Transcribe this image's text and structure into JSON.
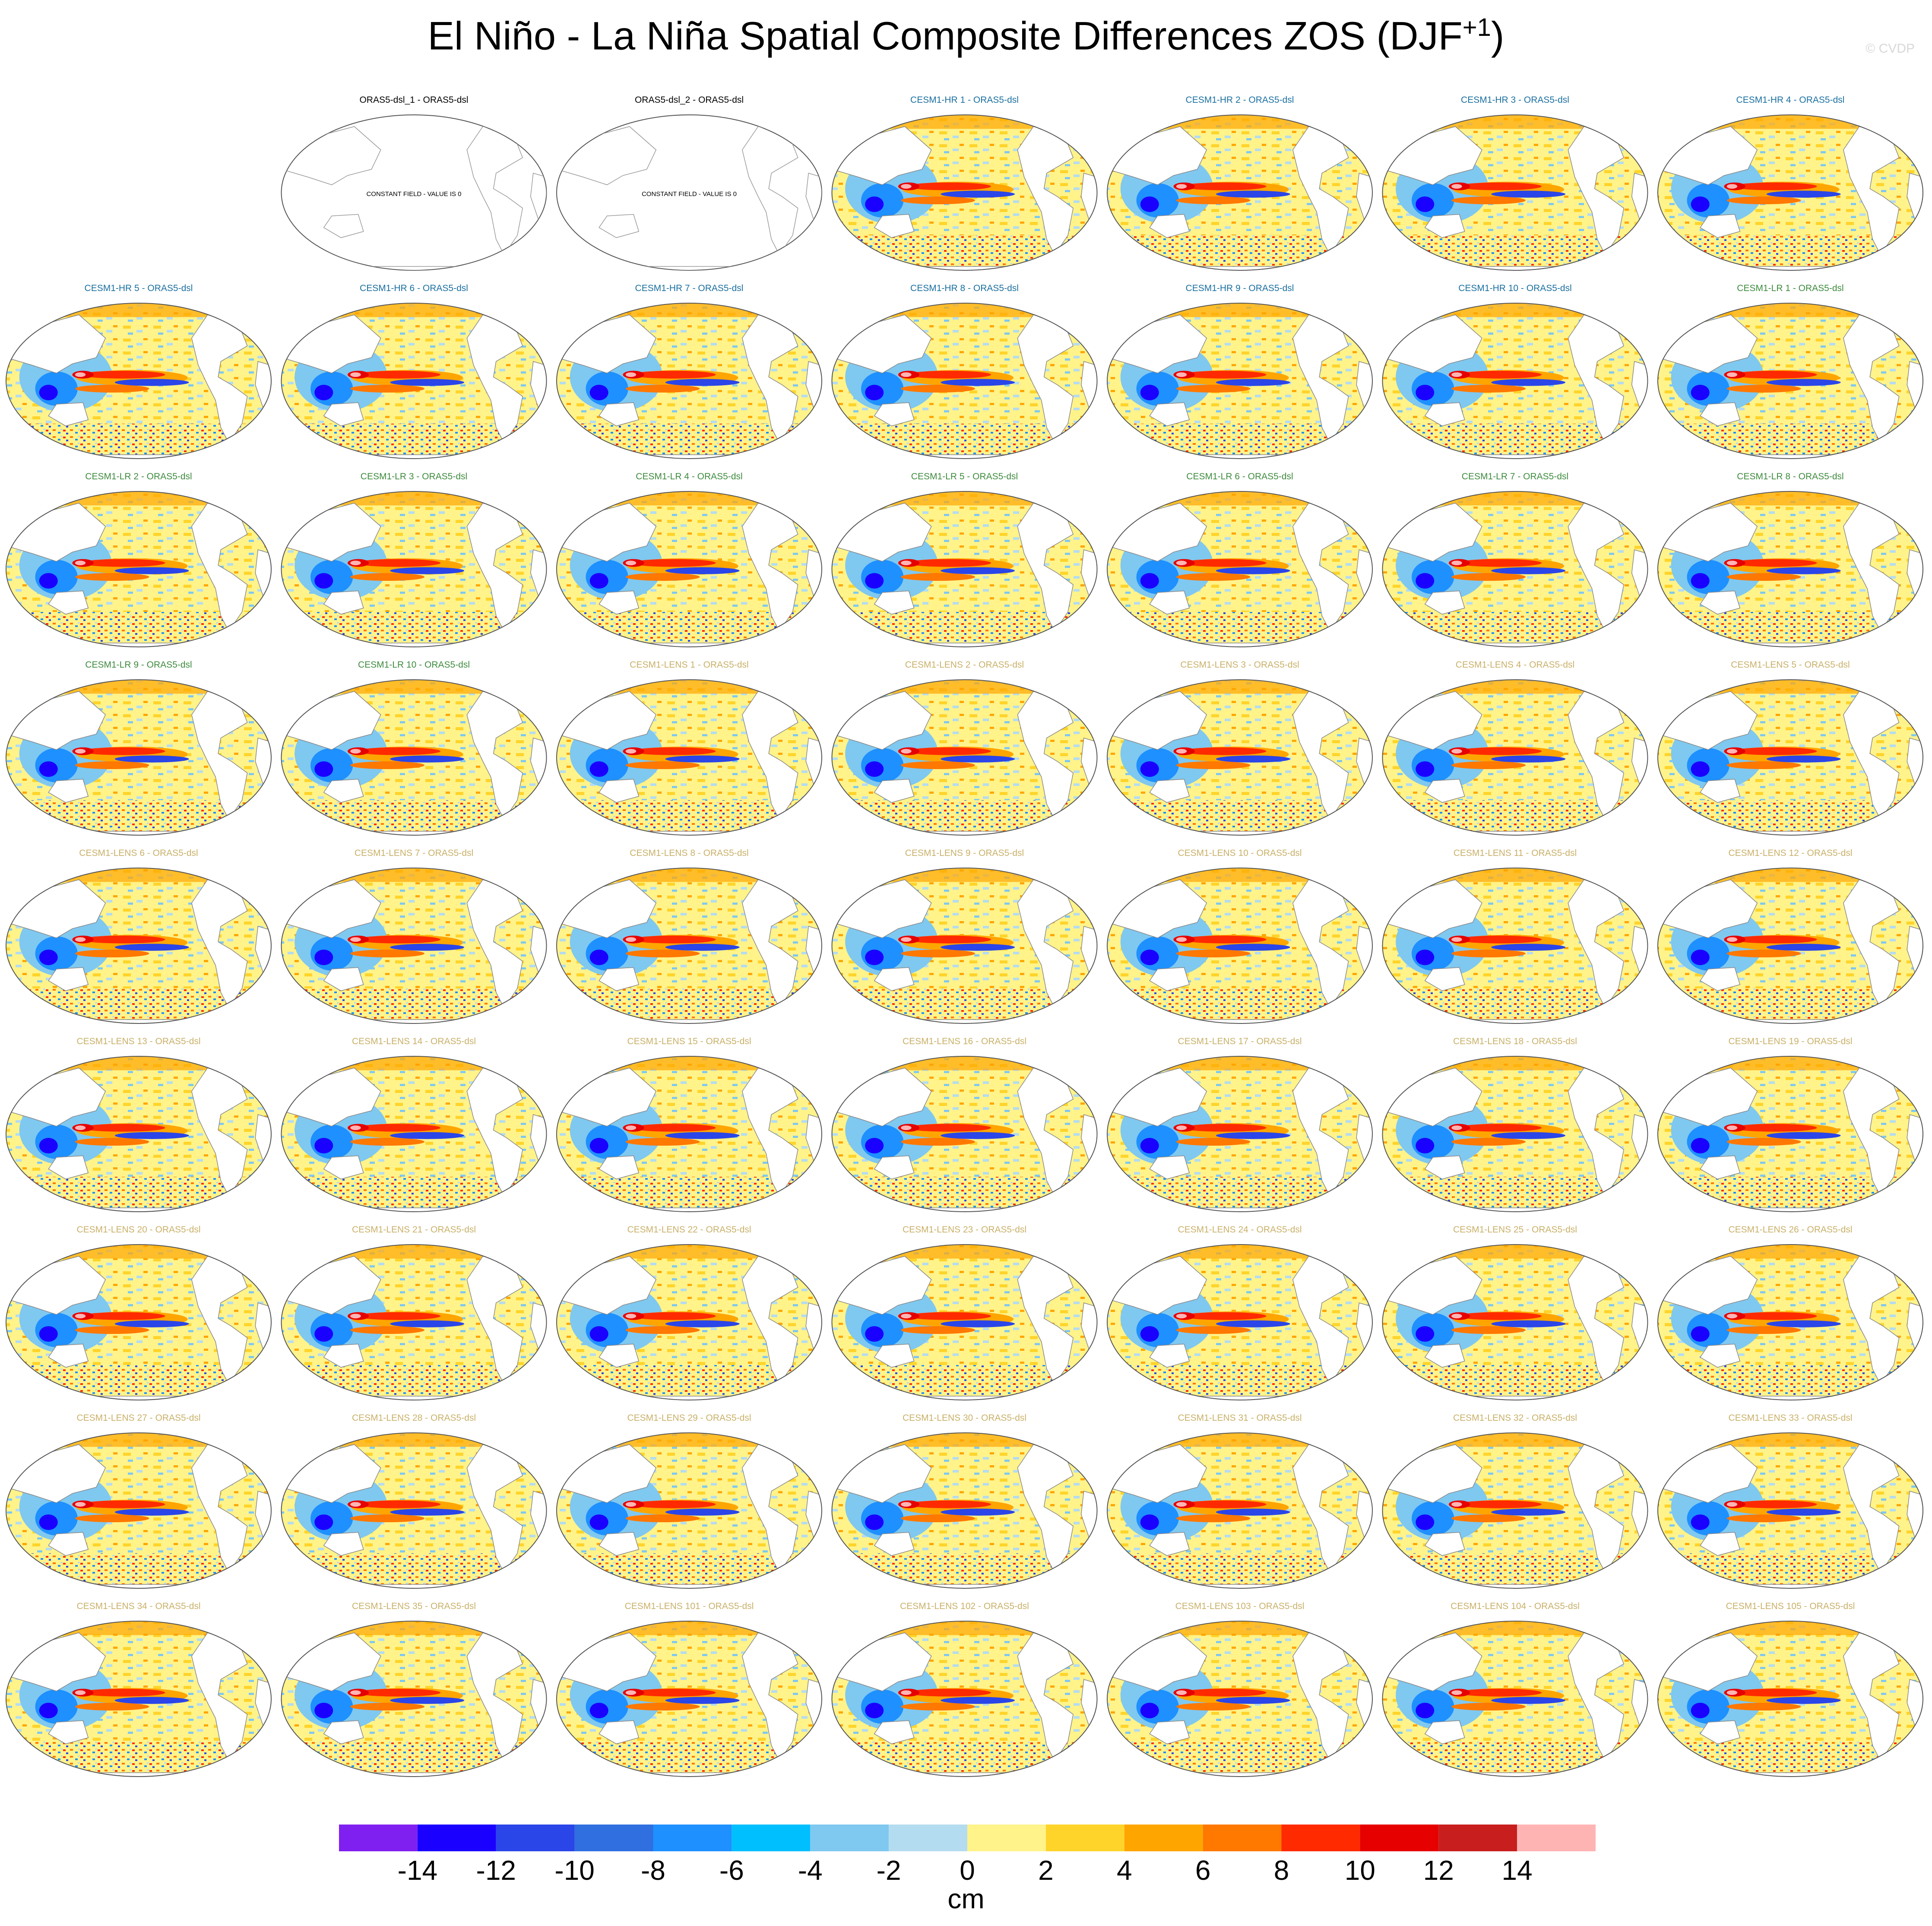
{
  "figure": {
    "title_main": "El Niño - La Niña Spatial Composite Differences ZOS (DJF",
    "title_sup": "+1",
    "title_close": ")",
    "credit": "© CVDP"
  },
  "panels": [
    {
      "label": "ORAS5-dsl_1 - ORAS5-dsl",
      "group": "obs",
      "constant": true
    },
    {
      "label": "ORAS5-dsl_2 - ORAS5-dsl",
      "group": "obs",
      "constant": true
    },
    {
      "label": "CESM1-HR 1 - ORAS5-dsl",
      "group": "hr"
    },
    {
      "label": "CESM1-HR 2 - ORAS5-dsl",
      "group": "hr"
    },
    {
      "label": "CESM1-HR 3 - ORAS5-dsl",
      "group": "hr"
    },
    {
      "label": "CESM1-HR 4 - ORAS5-dsl",
      "group": "hr"
    },
    {
      "label": "CESM1-HR 5 - ORAS5-dsl",
      "group": "hr"
    },
    {
      "label": "CESM1-HR 6 - ORAS5-dsl",
      "group": "hr"
    },
    {
      "label": "CESM1-HR 7 - ORAS5-dsl",
      "group": "hr"
    },
    {
      "label": "CESM1-HR 8 - ORAS5-dsl",
      "group": "hr"
    },
    {
      "label": "CESM1-HR 9 - ORAS5-dsl",
      "group": "hr"
    },
    {
      "label": "CESM1-HR 10 - ORAS5-dsl",
      "group": "hr"
    },
    {
      "label": "CESM1-LR 1 - ORAS5-dsl",
      "group": "lr"
    },
    {
      "label": "CESM1-LR 2 - ORAS5-dsl",
      "group": "lr"
    },
    {
      "label": "CESM1-LR 3 - ORAS5-dsl",
      "group": "lr"
    },
    {
      "label": "CESM1-LR 4 - ORAS5-dsl",
      "group": "lr"
    },
    {
      "label": "CESM1-LR 5 - ORAS5-dsl",
      "group": "lr"
    },
    {
      "label": "CESM1-LR 6 - ORAS5-dsl",
      "group": "lr"
    },
    {
      "label": "CESM1-LR 7 - ORAS5-dsl",
      "group": "lr"
    },
    {
      "label": "CESM1-LR 8 - ORAS5-dsl",
      "group": "lr"
    },
    {
      "label": "CESM1-LR 9 - ORAS5-dsl",
      "group": "lr"
    },
    {
      "label": "CESM1-LR 10 - ORAS5-dsl",
      "group": "lr"
    },
    {
      "label": "CESM1-LENS 1 - ORAS5-dsl",
      "group": "lens"
    },
    {
      "label": "CESM1-LENS 2 - ORAS5-dsl",
      "group": "lens"
    },
    {
      "label": "CESM1-LENS 3 - ORAS5-dsl",
      "group": "lens"
    },
    {
      "label": "CESM1-LENS 4 - ORAS5-dsl",
      "group": "lens"
    },
    {
      "label": "CESM1-LENS 5 - ORAS5-dsl",
      "group": "lens"
    },
    {
      "label": "CESM1-LENS 6 - ORAS5-dsl",
      "group": "lens"
    },
    {
      "label": "CESM1-LENS 7 - ORAS5-dsl",
      "group": "lens"
    },
    {
      "label": "CESM1-LENS 8 - ORAS5-dsl",
      "group": "lens"
    },
    {
      "label": "CESM1-LENS 9 - ORAS5-dsl",
      "group": "lens"
    },
    {
      "label": "CESM1-LENS 10 - ORAS5-dsl",
      "group": "lens"
    },
    {
      "label": "CESM1-LENS 11 - ORAS5-dsl",
      "group": "lens"
    },
    {
      "label": "CESM1-LENS 12 - ORAS5-dsl",
      "group": "lens"
    },
    {
      "label": "CESM1-LENS 13 - ORAS5-dsl",
      "group": "lens"
    },
    {
      "label": "CESM1-LENS 14 - ORAS5-dsl",
      "group": "lens"
    },
    {
      "label": "CESM1-LENS 15 - ORAS5-dsl",
      "group": "lens"
    },
    {
      "label": "CESM1-LENS 16 - ORAS5-dsl",
      "group": "lens"
    },
    {
      "label": "CESM1-LENS 17 - ORAS5-dsl",
      "group": "lens"
    },
    {
      "label": "CESM1-LENS 18 - ORAS5-dsl",
      "group": "lens"
    },
    {
      "label": "CESM1-LENS 19 - ORAS5-dsl",
      "group": "lens"
    },
    {
      "label": "CESM1-LENS 20 - ORAS5-dsl",
      "group": "lens"
    },
    {
      "label": "CESM1-LENS 21 - ORAS5-dsl",
      "group": "lens"
    },
    {
      "label": "CESM1-LENS 22 - ORAS5-dsl",
      "group": "lens"
    },
    {
      "label": "CESM1-LENS 23 - ORAS5-dsl",
      "group": "lens"
    },
    {
      "label": "CESM1-LENS 24 - ORAS5-dsl",
      "group": "lens"
    },
    {
      "label": "CESM1-LENS 25 - ORAS5-dsl",
      "group": "lens"
    },
    {
      "label": "CESM1-LENS 26 - ORAS5-dsl",
      "group": "lens"
    },
    {
      "label": "CESM1-LENS 27 - ORAS5-dsl",
      "group": "lens"
    },
    {
      "label": "CESM1-LENS 28 - ORAS5-dsl",
      "group": "lens"
    },
    {
      "label": "CESM1-LENS 29 - ORAS5-dsl",
      "group": "lens"
    },
    {
      "label": "CESM1-LENS 30 - ORAS5-dsl",
      "group": "lens"
    },
    {
      "label": "CESM1-LENS 31 - ORAS5-dsl",
      "group": "lens"
    },
    {
      "label": "CESM1-LENS 32 - ORAS5-dsl",
      "group": "lens"
    },
    {
      "label": "CESM1-LENS 33 - ORAS5-dsl",
      "group": "lens"
    },
    {
      "label": "CESM1-LENS 34 - ORAS5-dsl",
      "group": "lens"
    },
    {
      "label": "CESM1-LENS 35 - ORAS5-dsl",
      "group": "lens"
    },
    {
      "label": "CESM1-LENS 101 - ORAS5-dsl",
      "group": "lens"
    },
    {
      "label": "CESM1-LENS 102 - ORAS5-dsl",
      "group": "lens"
    },
    {
      "label": "CESM1-LENS 103 - ORAS5-dsl",
      "group": "lens"
    },
    {
      "label": "CESM1-LENS 104 - ORAS5-dsl",
      "group": "lens"
    },
    {
      "label": "CESM1-LENS 105 - ORAS5-dsl",
      "group": "lens"
    }
  ],
  "constant_field_text": "CONSTANT FIELD - VALUE IS 0",
  "group_colors": {
    "obs": "#000000",
    "hr": "#1a6fa0",
    "lr": "#3d8a3d",
    "lens": "#c9b068"
  },
  "colorbar": {
    "colors": [
      "#8020f0",
      "#1a00ff",
      "#2a45e8",
      "#2f6fe0",
      "#1e90ff",
      "#00bfff",
      "#7fc8f0",
      "#b4dcf0",
      "#fff38a",
      "#ffd42a",
      "#ffa500",
      "#ff7800",
      "#ff2a00",
      "#e60000",
      "#c81e1e",
      "#ffb4b4"
    ],
    "ticks": [
      "-14",
      "-12",
      "-10",
      "-8",
      "-6",
      "-4",
      "-2",
      "0",
      "2",
      "4",
      "6",
      "8",
      "10",
      "12",
      "14"
    ],
    "unit": "cm"
  }
}
